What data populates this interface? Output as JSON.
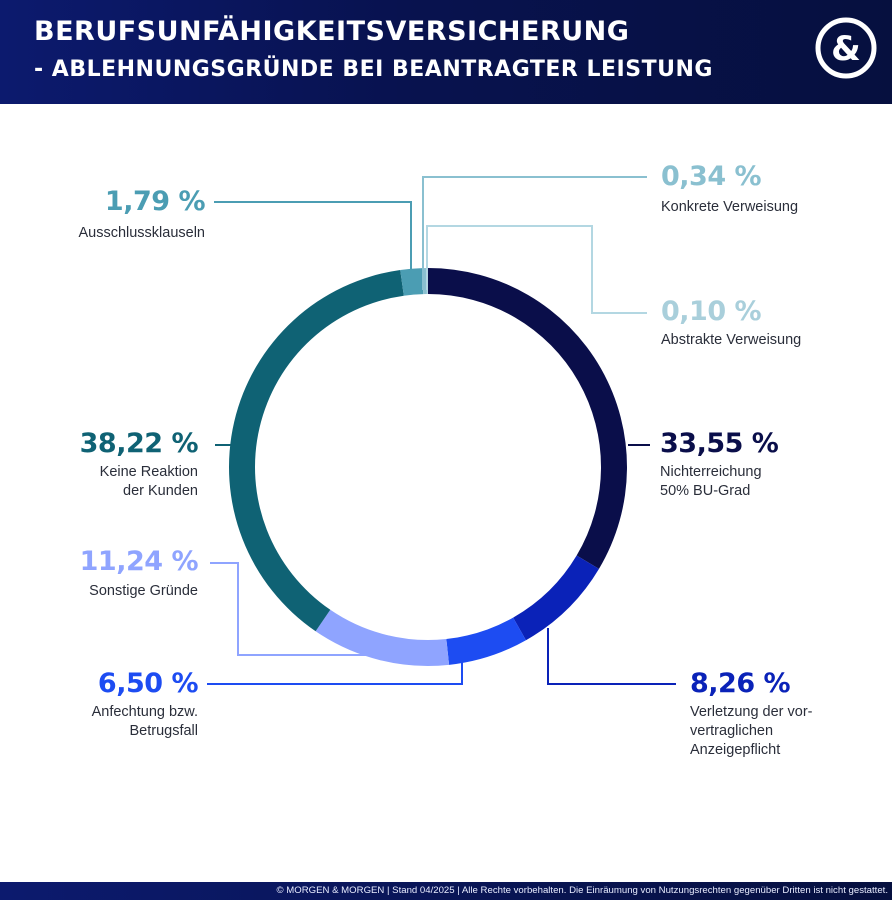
{
  "header": {
    "title_line1": "BERUFSUNFÄHIGKEITSVERSICHERUNG",
    "title_line2": "- ABLEHNUNGSGRÜNDE BEI BEANTRAGTER LEISTUNG",
    "logo_text": "&",
    "logo_icon": "ampersand-logo-icon"
  },
  "footer": {
    "text": "© MORGEN & MORGEN | Stand 04/2025 | Alle Rechte vorbehalten. Die Einräumung von Nutzungsrechten gegenüber Dritten ist nicht gestattet."
  },
  "chart_data": {
    "type": "pie",
    "variant": "donut",
    "title": "BERUFSUNFÄHIGKEITSVERSICHERUNG - ABLEHNUNGSGRÜNDE BEI BEANTRAGTER LEISTUNG",
    "categories": [
      "Nichterreichung 50% BU-Grad",
      "Verletzung der vor-vertraglichen Anzeigepflicht",
      "Anfechtung bzw. Betrugsfall",
      "Sonstige Gründe",
      "Keine Reaktion der Kunden",
      "Ausschlussklauseln",
      "Konkrete Verweisung",
      "Abstrakte Verweisung"
    ],
    "values": [
      33.55,
      8.26,
      6.5,
      11.24,
      38.22,
      1.79,
      0.34,
      0.1
    ],
    "value_labels": [
      "33,55 %",
      "8,26 %",
      "6,50 %",
      "11,24 %",
      "38,22 %",
      "1,79 %",
      "0,34 %",
      "0,10 %"
    ],
    "display_labels": [
      "Nichterreichung\n50% BU-Grad",
      "Verletzung der vor-\nvertraglichen\nAnzeigepflicht",
      "Anfechtung bzw.\nBetrugsfall",
      "Sonstige Gründe",
      "Keine Reaktion\nder Kunden",
      "Ausschlussklauseln",
      "Konkrete Verweisung",
      "Abstrakte Verweisung"
    ],
    "colors": [
      "#0a0e4a",
      "#0a22b8",
      "#1d4cf2",
      "#8fa4ff",
      "#0f6274",
      "#4b9db3",
      "#8ac0d0",
      "#b3d7e2"
    ],
    "legend": "none",
    "start_angle": "top, clockwise"
  }
}
